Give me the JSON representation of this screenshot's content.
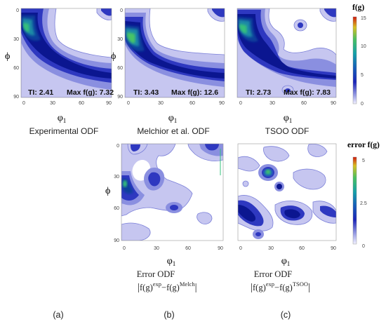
{
  "chart_data": [
    {
      "type": "heatmap",
      "caption": "Experimental ODF",
      "xlabel": "φ1",
      "ylabel": "Φ",
      "xticks": [
        0,
        30,
        60,
        90
      ],
      "yticks": [
        0,
        30,
        60,
        90
      ],
      "xlim": [
        0,
        90
      ],
      "ylim": [
        0,
        90
      ],
      "ti_label": "TI: 2.41",
      "max_label": "Max f(g): 7.32",
      "ti": 2.41,
      "max_fg": 7.32
    },
    {
      "type": "heatmap",
      "caption": "Melchior et al. ODF",
      "xlabel": "φ1",
      "ylabel": "Φ",
      "xticks": [
        0,
        30,
        60,
        90
      ],
      "yticks": [
        0,
        30,
        60,
        90
      ],
      "xlim": [
        0,
        90
      ],
      "ylim": [
        0,
        90
      ],
      "ti_label": "TI: 3.43",
      "max_label": "Max f(g): 12.6",
      "ti": 3.43,
      "max_fg": 12.6
    },
    {
      "type": "heatmap",
      "caption": "TSOO ODF",
      "xlabel": "φ1",
      "ylabel": "",
      "xticks": [
        0,
        30,
        60,
        90
      ],
      "yticks": [
        0,
        30,
        60,
        90
      ],
      "xlim": [
        0,
        90
      ],
      "ylim": [
        0,
        90
      ],
      "ti_label": "TI: 2.73",
      "max_label": "Max f(g): 7.83",
      "ti": 2.73,
      "max_fg": 7.83
    },
    {
      "type": "heatmap",
      "caption_line1": "Error ODF",
      "caption_formula": "|f(g)exp−f(g)Melch|",
      "xlabel": "φ1",
      "ylabel": "Φ",
      "xticks": [
        0,
        30,
        60,
        90
      ],
      "yticks": [
        0,
        30,
        60,
        90
      ],
      "xlim": [
        0,
        90
      ],
      "ylim": [
        0,
        90
      ]
    },
    {
      "type": "heatmap",
      "caption_line1": "Error ODF",
      "caption_formula": "|f(g)exp−f(g)TSOO|",
      "xlabel": "φ1",
      "ylabel": "",
      "xticks": [
        0,
        30,
        60,
        90
      ],
      "yticks": [
        0,
        30,
        60,
        90
      ],
      "xlim": [
        0,
        90
      ],
      "ylim": [
        0,
        90
      ]
    }
  ],
  "colorbars": [
    {
      "title": "f(g)",
      "ticks": [
        0,
        5,
        10,
        15
      ],
      "range": [
        0,
        15
      ]
    },
    {
      "title": "error f(g)",
      "ticks": [
        0,
        2.5,
        5
      ],
      "range": [
        0,
        5
      ]
    }
  ],
  "labels": {
    "phi1": "φ",
    "phi1_sub": "1",
    "Phi": "ϕ"
  },
  "panel_letters": [
    "(a)",
    "(b)",
    "(c)"
  ],
  "formula_parts": {
    "f": "f(g)",
    "exp": "exp",
    "minus": "−",
    "melch": "Melch",
    "tsoo": "TSOO"
  },
  "colors": {
    "pale": "#c4c4ef",
    "light": "#8a8ee0",
    "medium": "#2c37bf",
    "dark": "#0a1590",
    "deep": "#0a3d9a",
    "teal": "#1c8aa6",
    "green": "#2fbf7a",
    "hot": "#d03a1a"
  }
}
